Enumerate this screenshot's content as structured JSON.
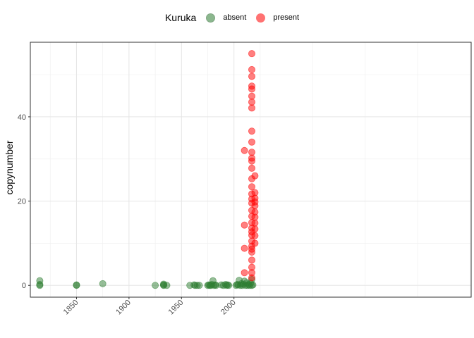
{
  "chart_data": {
    "type": "scatter",
    "xlabel": "",
    "ylabel": "copynumber",
    "xlim": [
      1806,
      2226
    ],
    "ylim": [
      -2.8,
      57.7
    ],
    "x_ticks": [
      1850,
      1900,
      1950,
      2000
    ],
    "y_ticks": [
      0,
      20,
      40
    ],
    "legend": {
      "title": "Kuruka",
      "position": "top"
    },
    "series": [
      {
        "name": "absent",
        "color": "#2E7D32",
        "points": [
          [
            1815,
            1.1
          ],
          [
            1815,
            0.2
          ],
          [
            1815,
            0.0
          ],
          [
            1850,
            0.1
          ],
          [
            1850,
            0.0
          ],
          [
            1875,
            0.4
          ],
          [
            1925,
            0.0
          ],
          [
            1933,
            0.3
          ],
          [
            1933,
            0.1
          ],
          [
            1933,
            0.0
          ],
          [
            1936,
            0.0
          ],
          [
            1958,
            0.0
          ],
          [
            1962,
            0.1
          ],
          [
            1963,
            0.0
          ],
          [
            1965,
            0.0
          ],
          [
            1967,
            0.0
          ],
          [
            1975,
            0.0
          ],
          [
            1976,
            0.1
          ],
          [
            1977,
            0.0
          ],
          [
            1978,
            0.0
          ],
          [
            1979,
            0.2
          ],
          [
            1980,
            1.1
          ],
          [
            1981,
            0.0
          ],
          [
            1982,
            0.1
          ],
          [
            1983,
            0.0
          ],
          [
            1988,
            0.1
          ],
          [
            1990,
            0.0
          ],
          [
            1992,
            0.2
          ],
          [
            1993,
            0.0
          ],
          [
            1994,
            0.1
          ],
          [
            1995,
            0.0
          ],
          [
            2002,
            0.0
          ],
          [
            2003,
            0.2
          ],
          [
            2004,
            0.1
          ],
          [
            2005,
            1.2
          ],
          [
            2006,
            0.0
          ],
          [
            2007,
            0.4
          ],
          [
            2008,
            0.0
          ],
          [
            2009,
            0.3
          ],
          [
            2010,
            1.0
          ],
          [
            2011,
            0.0
          ],
          [
            2012,
            0.6
          ],
          [
            2013,
            0.0
          ],
          [
            2014,
            0.2
          ],
          [
            2015,
            0.0
          ],
          [
            2016,
            0.5
          ],
          [
            2017,
            1.4
          ],
          [
            2017,
            0.0
          ],
          [
            2018,
            0.1
          ]
        ]
      },
      {
        "name": "present",
        "color": "#FF0000",
        "points": [
          [
            2010,
            32.0
          ],
          [
            2010,
            14.3
          ],
          [
            2010,
            8.8
          ],
          [
            2010,
            3.0
          ],
          [
            2017,
            55.0
          ],
          [
            2017,
            51.2
          ],
          [
            2017,
            49.6
          ],
          [
            2017,
            47.3
          ],
          [
            2017,
            46.6
          ],
          [
            2017,
            44.9
          ],
          [
            2017,
            43.5
          ],
          [
            2017,
            42.1
          ],
          [
            2017,
            36.6
          ],
          [
            2017,
            34.0
          ],
          [
            2017,
            31.6
          ],
          [
            2017,
            30.2
          ],
          [
            2017,
            29.5
          ],
          [
            2017,
            27.8
          ],
          [
            2017,
            25.3
          ],
          [
            2017,
            23.4
          ],
          [
            2017,
            21.7
          ],
          [
            2017,
            20.5
          ],
          [
            2017,
            19.5
          ],
          [
            2017,
            17.8
          ],
          [
            2017,
            16.4
          ],
          [
            2017,
            14.9
          ],
          [
            2017,
            13.6
          ],
          [
            2017,
            12.7
          ],
          [
            2017,
            11.9
          ],
          [
            2017,
            10.5
          ],
          [
            2017,
            9.3
          ],
          [
            2017,
            8.6
          ],
          [
            2017,
            7.9
          ],
          [
            2017,
            6.0
          ],
          [
            2017,
            4.3
          ],
          [
            2017,
            3.0
          ],
          [
            2017,
            1.8
          ],
          [
            2020,
            26.0
          ],
          [
            2020,
            22.0
          ],
          [
            2020,
            20.7
          ],
          [
            2020,
            19.8
          ],
          [
            2020,
            18.9
          ],
          [
            2020,
            17.4
          ],
          [
            2020,
            16.2
          ],
          [
            2020,
            14.8
          ],
          [
            2020,
            13.4
          ],
          [
            2020,
            11.8
          ],
          [
            2020,
            10.0
          ]
        ]
      }
    ]
  }
}
